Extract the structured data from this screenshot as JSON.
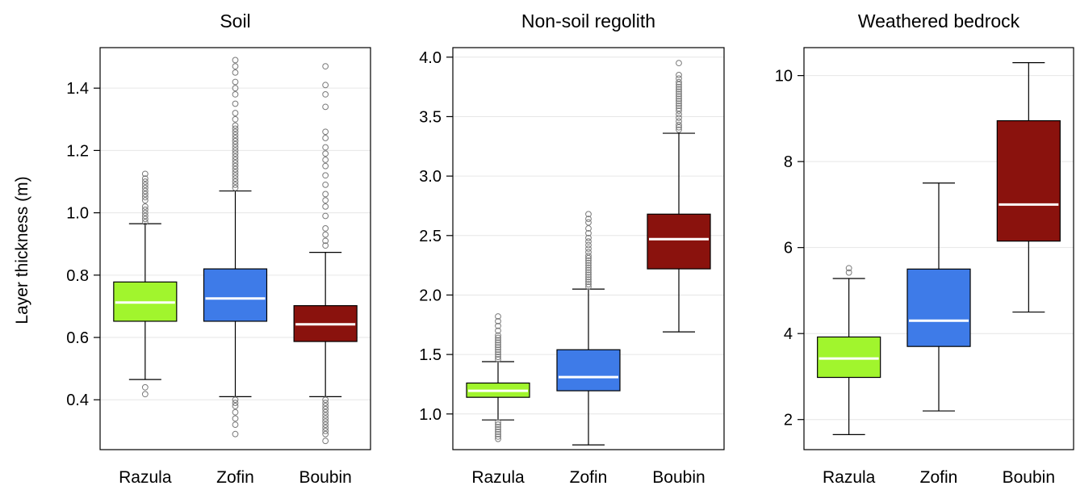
{
  "ylabel": "Layer thickness (m)",
  "colors": {
    "Razula": "#a1f52d",
    "Zofin": "#3e7be8",
    "Boubin": "#8a120d",
    "median": "#ffffff",
    "grid": "#e6e6e6"
  },
  "chart_data": [
    {
      "type": "box",
      "title": "Soil",
      "ylabel": "Layer thickness (m)",
      "categories": [
        "Razula",
        "Zofin",
        "Boubin"
      ],
      "yticks": [
        0.4,
        0.6,
        0.8,
        1.0,
        1.2,
        1.4
      ],
      "ytick_labels": [
        "0.4",
        "0.6",
        "0.8",
        "1.0",
        "1.2",
        "1.4"
      ],
      "ylim": [
        0.24,
        1.53
      ],
      "grid": true,
      "boxes": [
        {
          "name": "Razula",
          "whisker_low": 0.465,
          "q1": 0.652,
          "median": 0.712,
          "q3": 0.778,
          "whisker_high": 0.965,
          "outliers": [
            0.418,
            0.44,
            0.97,
            0.98,
            0.99,
            1.0,
            1.01,
            1.02,
            1.04,
            1.05,
            1.06,
            1.07,
            1.08,
            1.09,
            1.1,
            1.11,
            1.125
          ]
        },
        {
          "name": "Zofin",
          "whisker_low": 0.41,
          "q1": 0.652,
          "median": 0.725,
          "q3": 0.82,
          "whisker_high": 1.07,
          "outliers": [
            0.29,
            0.32,
            0.34,
            0.36,
            0.38,
            0.39,
            0.4,
            1.08,
            1.09,
            1.1,
            1.11,
            1.12,
            1.13,
            1.14,
            1.15,
            1.16,
            1.17,
            1.18,
            1.19,
            1.2,
            1.21,
            1.22,
            1.23,
            1.24,
            1.25,
            1.26,
            1.27,
            1.28,
            1.3,
            1.32,
            1.35,
            1.38,
            1.4,
            1.42,
            1.45,
            1.47,
            1.49
          ]
        },
        {
          "name": "Boubin",
          "whisker_low": 0.41,
          "q1": 0.587,
          "median": 0.642,
          "q3": 0.702,
          "whisker_high": 0.873,
          "outliers": [
            0.268,
            0.29,
            0.3,
            0.31,
            0.32,
            0.33,
            0.34,
            0.35,
            0.36,
            0.37,
            0.38,
            0.39,
            0.4,
            0.895,
            0.91,
            0.93,
            0.95,
            0.99,
            1.02,
            1.04,
            1.06,
            1.09,
            1.12,
            1.15,
            1.17,
            1.19,
            1.21,
            1.24,
            1.26,
            1.34,
            1.38,
            1.41,
            1.47
          ]
        }
      ]
    },
    {
      "type": "box",
      "title": "Non-soil regolith",
      "ylabel": "",
      "categories": [
        "Razula",
        "Zofin",
        "Boubin"
      ],
      "yticks": [
        1.0,
        1.5,
        2.0,
        2.5,
        3.0,
        3.5,
        4.0
      ],
      "ytick_labels": [
        "1.0",
        "1.5",
        "2.0",
        "2.5",
        "3.0",
        "3.5",
        "4.0"
      ],
      "ylim": [
        0.7,
        4.08
      ],
      "grid": true,
      "boxes": [
        {
          "name": "Razula",
          "whisker_low": 0.95,
          "q1": 1.14,
          "median": 1.195,
          "q3": 1.26,
          "whisker_high": 1.44,
          "outliers": [
            0.79,
            0.81,
            0.83,
            0.85,
            0.87,
            0.89,
            0.91,
            0.93,
            1.46,
            1.48,
            1.5,
            1.52,
            1.54,
            1.56,
            1.58,
            1.6,
            1.62,
            1.64,
            1.66,
            1.7,
            1.74,
            1.78,
            1.82
          ]
        },
        {
          "name": "Zofin",
          "whisker_low": 0.74,
          "q1": 1.195,
          "median": 1.31,
          "q3": 1.54,
          "whisker_high": 2.05,
          "outliers": [
            2.07,
            2.09,
            2.11,
            2.13,
            2.15,
            2.17,
            2.19,
            2.21,
            2.23,
            2.25,
            2.27,
            2.29,
            2.31,
            2.33,
            2.36,
            2.39,
            2.42,
            2.45,
            2.48,
            2.52,
            2.56,
            2.61,
            2.64,
            2.68
          ]
        },
        {
          "name": "Boubin",
          "whisker_low": 1.69,
          "q1": 2.22,
          "median": 2.47,
          "q3": 2.68,
          "whisker_high": 3.36,
          "outliers": [
            3.39,
            3.41,
            3.43,
            3.46,
            3.49,
            3.52,
            3.55,
            3.57,
            3.59,
            3.61,
            3.63,
            3.65,
            3.67,
            3.69,
            3.71,
            3.73,
            3.75,
            3.77,
            3.79,
            3.82,
            3.85,
            3.95
          ]
        }
      ]
    },
    {
      "type": "box",
      "title": "Weathered bedrock",
      "ylabel": "",
      "categories": [
        "Razula",
        "Zofin",
        "Boubin"
      ],
      "yticks": [
        2,
        4,
        6,
        8,
        10
      ],
      "ytick_labels": [
        "2",
        "4",
        "6",
        "8",
        "10"
      ],
      "ylim": [
        1.3,
        10.65
      ],
      "grid": true,
      "boxes": [
        {
          "name": "Razula",
          "whisker_low": 1.65,
          "q1": 2.98,
          "median": 3.42,
          "q3": 3.92,
          "whisker_high": 5.28,
          "outliers": [
            5.42,
            5.52
          ]
        },
        {
          "name": "Zofin",
          "whisker_low": 2.2,
          "q1": 3.7,
          "median": 4.3,
          "q3": 5.5,
          "whisker_high": 7.5,
          "outliers": []
        },
        {
          "name": "Boubin",
          "whisker_low": 4.5,
          "q1": 6.15,
          "median": 7.0,
          "q3": 8.95,
          "whisker_high": 10.3,
          "outliers": []
        }
      ]
    }
  ]
}
